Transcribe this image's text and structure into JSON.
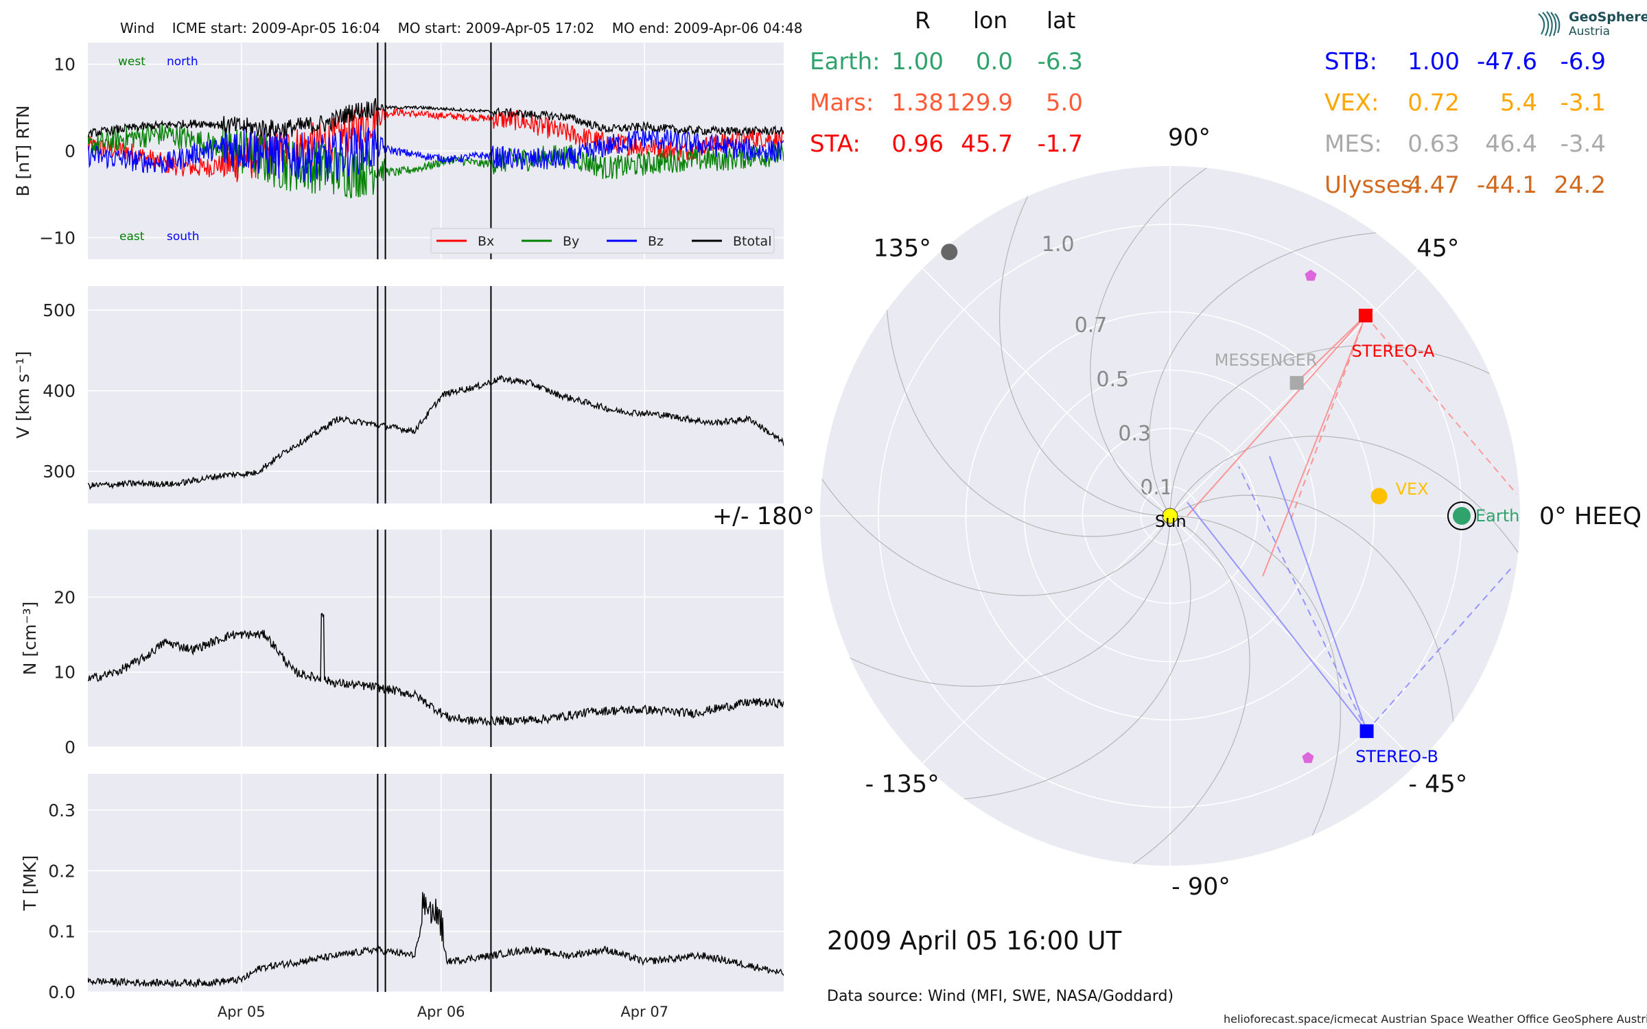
{
  "chart_data": [
    {
      "type": "line",
      "panel": "B",
      "title_parts": {
        "spacecraft": "Wind",
        "icme_start": "ICME start: 2009-Apr-05 16:04",
        "mo_start": "MO start: 2009-Apr-05 17:02",
        "mo_end": "MO end: 2009-Apr-06 04:48"
      },
      "ylabel": "B [nT] RTN",
      "ylim": [
        -12.5,
        12.5
      ],
      "yticks": [
        10,
        0,
        -10
      ],
      "ytick_labels": [
        "10",
        "0",
        "−10"
      ],
      "corner_labels": {
        "west": "west",
        "north": "north",
        "east": "east",
        "south": "south"
      },
      "legend": [
        {
          "name": "Bx",
          "color": "#ff0000"
        },
        {
          "name": "By",
          "color": "#008000"
        },
        {
          "name": "Bz",
          "color": "#0000ff"
        },
        {
          "name": "Btotal",
          "color": "#000000"
        }
      ],
      "x_knots_days": [
        0,
        0.4,
        0.8,
        1.2,
        1.6,
        2.0,
        2.5,
        2.75,
        3.0,
        3.2,
        3.45,
        3.8,
        4.1,
        4.5,
        5.0,
        5.4,
        5.8,
        6.2,
        6.6,
        7.0,
        7.5
      ],
      "series": [
        {
          "key": "bt",
          "values": [
            2.0,
            2.6,
            3.0,
            3.2,
            2.8,
            2.5,
            3.2,
            4.5,
            5.0,
            5.0,
            5.0,
            4.8,
            4.6,
            4.3,
            3.9,
            2.5,
            2.8,
            2.4,
            2.3,
            2.3,
            2.3
          ],
          "noise": 0.5
        },
        {
          "key": "bx",
          "values": [
            0.5,
            0.0,
            -1.5,
            -2.0,
            -1.0,
            0.0,
            1.0,
            2.0,
            4.0,
            4.5,
            4.2,
            4.0,
            3.8,
            3.5,
            2.0,
            1.0,
            0.5,
            0.0,
            1.0,
            1.5,
            1.0
          ],
          "noise": 1.2
        },
        {
          "key": "by",
          "values": [
            0.5,
            1.5,
            2.0,
            1.0,
            0.0,
            -1.5,
            -2.0,
            -2.5,
            -2.0,
            -2.5,
            -2.0,
            -1.0,
            -1.5,
            -1.0,
            -0.5,
            -2.0,
            -1.5,
            -1.0,
            -1.0,
            -0.5,
            -0.5
          ],
          "noise": 1.4
        },
        {
          "key": "bz",
          "values": [
            -0.5,
            -1.0,
            -1.5,
            0.0,
            0.5,
            -0.5,
            -1.0,
            0.0,
            0.5,
            0.0,
            -0.5,
            -1.0,
            -0.5,
            -1.0,
            -1.0,
            0.5,
            1.5,
            1.0,
            0.5,
            0.0,
            0.0
          ],
          "noise": 1.3
        }
      ]
    },
    {
      "type": "line",
      "panel": "V",
      "ylabel": "V [km s⁻¹]",
      "ylim": [
        260,
        530
      ],
      "yticks": [
        500,
        400,
        300
      ],
      "ytick_labels": [
        "500",
        "400",
        "300"
      ],
      "x_knots_days": [
        0,
        0.5,
        0.9,
        1.4,
        1.75,
        2.1,
        2.35,
        2.6,
        2.9,
        3.4,
        3.7,
        3.85,
        4.05,
        4.3,
        4.6,
        4.9,
        5.2,
        5.5,
        6.0,
        6.5,
        6.9,
        7.25
      ],
      "values": [
        282,
        285,
        284,
        295,
        298,
        328,
        345,
        365,
        360,
        350,
        395,
        400,
        405,
        415,
        410,
        395,
        385,
        375,
        370,
        360,
        365,
        335
      ],
      "noise": 4
    },
    {
      "type": "line",
      "panel": "N",
      "ylabel": "N [cm⁻³]",
      "ylim": [
        0,
        29
      ],
      "yticks": [
        20,
        10,
        0
      ],
      "ytick_labels": [
        "20",
        "10",
        "0"
      ],
      "x_knots_days": [
        0,
        0.3,
        0.6,
        0.8,
        1.1,
        1.5,
        1.85,
        2.15,
        2.6,
        3.0,
        3.4,
        3.75,
        4.0,
        4.4,
        4.8,
        5.3,
        5.8,
        6.3,
        6.9,
        7.25
      ],
      "values": [
        9,
        10,
        12,
        14,
        13,
        15,
        15,
        10,
        8.5,
        8,
        7,
        4,
        3.5,
        3.5,
        3.8,
        4.8,
        5.0,
        4.5,
        6,
        5.8
      ],
      "noise": 0.6
    },
    {
      "type": "line",
      "panel": "T",
      "ylabel": "T [MK]",
      "ylim": [
        0,
        0.36
      ],
      "yticks": [
        0.3,
        0.2,
        0.1,
        0.0
      ],
      "ytick_labels": [
        "0.3",
        "0.2",
        "0.1",
        "0.0"
      ],
      "x_knots_days": [
        0,
        0.6,
        1.2,
        1.6,
        1.8,
        2.2,
        2.6,
        3.0,
        3.4,
        3.5,
        3.65,
        3.75,
        4.2,
        4.6,
        5.0,
        5.4,
        5.8,
        6.4,
        7.0,
        7.25
      ],
      "values": [
        0.018,
        0.015,
        0.015,
        0.02,
        0.04,
        0.05,
        0.06,
        0.07,
        0.06,
        0.12,
        0.1,
        0.05,
        0.06,
        0.07,
        0.06,
        0.07,
        0.05,
        0.06,
        0.04,
        0.03
      ],
      "noise": 0.006
    },
    {
      "type": "polar",
      "panel": "orbit",
      "angle_labels": [
        {
          "deg": 90,
          "text": "90°"
        },
        {
          "deg": 45,
          "text": "45°"
        },
        {
          "deg": 0,
          "text": "0° HEEQ"
        },
        {
          "deg": -45,
          "text": "- 45°"
        },
        {
          "deg": -90,
          "text": "- 90°"
        },
        {
          "deg": -135,
          "text": "- 135°"
        },
        {
          "deg": 180,
          "text": "+/- 180°"
        },
        {
          "deg": 135,
          "text": "135°"
        }
      ],
      "radial_ticks": [
        {
          "r": 0.1,
          "label": "0.1"
        },
        {
          "r": 0.3,
          "label": "0.3"
        },
        {
          "r": 0.5,
          "label": "0.5"
        },
        {
          "r": 0.7,
          "label": "0.7"
        },
        {
          "r": 1.0,
          "label": "1.0"
        }
      ],
      "rmax": 1.2,
      "bodies": [
        {
          "name": "Sun",
          "label": "Sun",
          "r": 0.0,
          "lon": 0.0,
          "color": "#ffff00",
          "shape": "circle"
        },
        {
          "name": "Earth",
          "label": "Earth",
          "r": 1.0,
          "lon": 0.0,
          "color": "#2fa36b",
          "shape": "circle-ring"
        },
        {
          "name": "VEX",
          "label": "VEX",
          "r": 0.72,
          "lon": 5.4,
          "color": "#ffc000",
          "shape": "circle"
        },
        {
          "name": "MESSENGER",
          "label": "MESSENGER",
          "r": 0.63,
          "lon": 46.4,
          "color": "#a9a9a9",
          "shape": "square"
        },
        {
          "name": "STEREO-A",
          "label": "STEREO-A",
          "r": 0.96,
          "lon": 45.7,
          "color": "#ff0000",
          "shape": "square"
        },
        {
          "name": "STEREO-B",
          "label": "STEREO-B",
          "r": 1.0,
          "lon": -47.6,
          "color": "#0000ff",
          "shape": "square"
        },
        {
          "name": "Mars",
          "label": "",
          "r": 1.38,
          "lon": 129.9,
          "color": "#666666",
          "shape": "circle"
        }
      ],
      "stat_header": {
        "r": "R",
        "lon": "lon",
        "lat": "lat"
      },
      "stats_left": [
        {
          "name": "Earth:",
          "r": "1.00",
          "lon": "0.0",
          "lat": "-6.3",
          "color": "#2fa36b"
        },
        {
          "name": "Mars:",
          "r": "1.38",
          "lon": "129.9",
          "lat": "5.0",
          "color": "#ff5a36"
        },
        {
          "name": "STA:",
          "r": "0.96",
          "lon": "45.7",
          "lat": "-1.7",
          "color": "#ff0000"
        }
      ],
      "stats_right": [
        {
          "name": "STB:",
          "r": "1.00",
          "lon": "-47.6",
          "lat": "-6.9",
          "color": "#0000ff"
        },
        {
          "name": "VEX:",
          "r": "0.72",
          "lon": "5.4",
          "lat": "-3.1",
          "color": "#ffa500"
        },
        {
          "name": "MES:",
          "r": "0.63",
          "lon": "46.4",
          "lat": "-3.4",
          "color": "#a9a9a9"
        },
        {
          "name": "Ulysses:",
          "r": "4.47",
          "lon": "-44.1",
          "lat": "24.2",
          "color": "#d2691e"
        }
      ]
    }
  ],
  "x_axis": {
    "x_range_days": [
      0,
      7.25
    ],
    "ticks": [
      {
        "day": 1.6,
        "label": "Apr 05"
      },
      {
        "day": 3.68,
        "label": "Apr 06"
      },
      {
        "day": 5.8,
        "label": "Apr 07"
      }
    ],
    "event_lines_days": [
      3.02,
      3.1,
      4.2
    ]
  },
  "datetime": "2009 April 05  16:00 UT",
  "data_source": "Data source: Wind (MFI, SWE, NASA/Goddard)",
  "footer": "helioforecast.space/icmecat   Austrian Space Weather Office   GeoSphere Austria",
  "logo": {
    "line1": "GeoSphere",
    "line2": "Austria"
  },
  "colors": {
    "panel_bg": "#eaeaf2",
    "grid": "#ffffff"
  }
}
